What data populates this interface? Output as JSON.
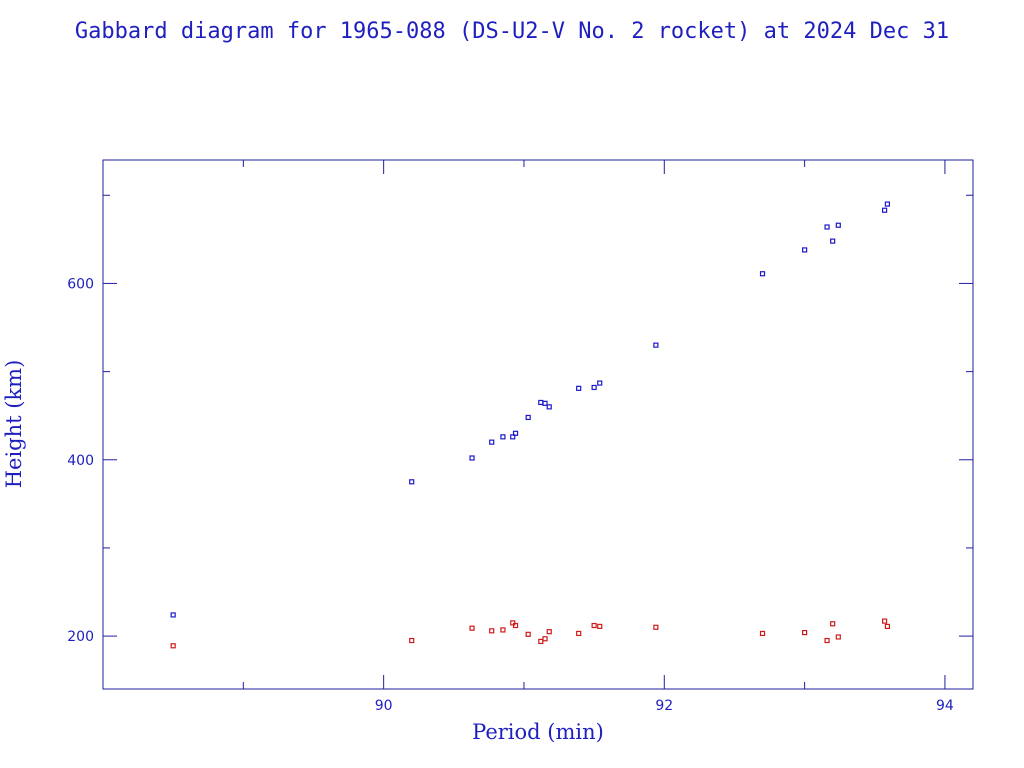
{
  "chart_data": {
    "type": "scatter",
    "title": "Gabbard diagram for 1965-088 (DS-U2-V No. 2 rocket) at 2024 Dec 31",
    "xlabel": "Period (min)",
    "ylabel": "Height (km)",
    "xlim": [
      88,
      94.2
    ],
    "ylim": [
      140,
      740
    ],
    "x_major_ticks": [
      90,
      92,
      94
    ],
    "x_minor_ticks": [
      89,
      91,
      93
    ],
    "y_major_ticks": [
      200,
      400,
      600
    ],
    "y_minor_ticks": [
      300,
      500,
      700
    ],
    "grid": false,
    "colors": {
      "text": "#1f1fbf",
      "axes": "#1f1f9f",
      "apogee": "#1a1ac8",
      "perigee": "#d01a1a"
    },
    "series": [
      {
        "marker_color": "#1a1ac8",
        "points": [
          [
            88.5,
            224
          ],
          [
            90.2,
            375
          ],
          [
            90.63,
            402
          ],
          [
            90.77,
            420
          ],
          [
            90.85,
            426
          ],
          [
            90.92,
            426
          ],
          [
            90.94,
            430
          ],
          [
            91.03,
            448
          ],
          [
            91.12,
            465
          ],
          [
            91.15,
            464
          ],
          [
            91.18,
            460
          ],
          [
            91.39,
            481
          ],
          [
            91.5,
            482
          ],
          [
            91.54,
            487
          ],
          [
            91.94,
            530
          ],
          [
            92.7,
            611
          ],
          [
            93.0,
            638
          ],
          [
            93.16,
            664
          ],
          [
            93.2,
            648
          ],
          [
            93.24,
            666
          ],
          [
            93.57,
            683
          ],
          [
            93.59,
            690
          ]
        ]
      },
      {
        "marker_color": "#d01a1a",
        "points": [
          [
            88.5,
            189
          ],
          [
            90.2,
            195
          ],
          [
            90.63,
            209
          ],
          [
            90.77,
            206
          ],
          [
            90.85,
            207
          ],
          [
            90.92,
            215
          ],
          [
            90.94,
            212
          ],
          [
            91.03,
            202
          ],
          [
            91.12,
            194
          ],
          [
            91.15,
            197
          ],
          [
            91.18,
            205
          ],
          [
            91.39,
            203
          ],
          [
            91.5,
            212
          ],
          [
            91.54,
            211
          ],
          [
            91.94,
            210
          ],
          [
            92.7,
            203
          ],
          [
            93.0,
            204
          ],
          [
            93.16,
            195
          ],
          [
            93.2,
            214
          ],
          [
            93.24,
            199
          ],
          [
            93.57,
            217
          ],
          [
            93.59,
            211
          ]
        ]
      }
    ]
  }
}
